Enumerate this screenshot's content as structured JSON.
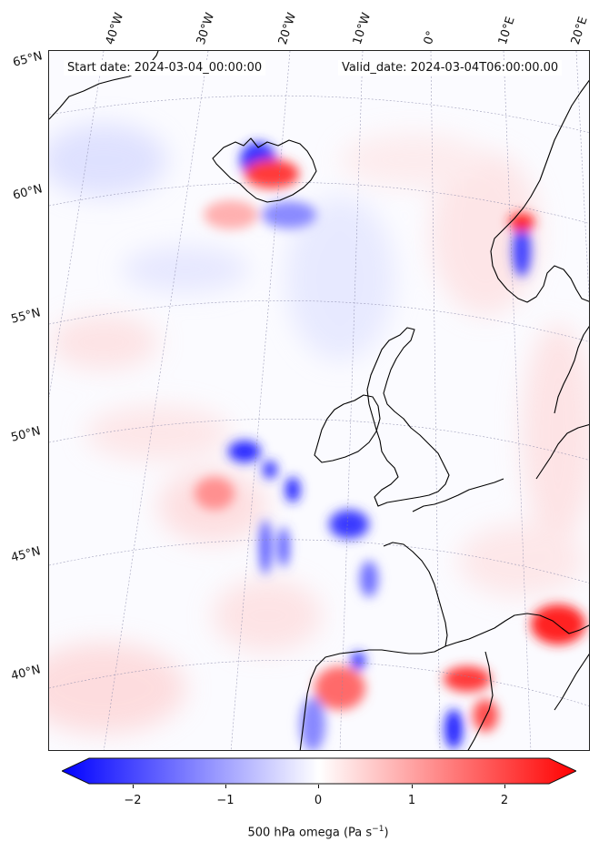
{
  "header": {
    "start_label": "Start date: 2024-03-04_00:00:00",
    "valid_label": "Valid_date: 2024-03-04T06:00:00.00"
  },
  "longitude_labels": [
    "40°W",
    "30°W",
    "20°W",
    "10°W",
    "0°",
    "10°E",
    "20°E"
  ],
  "latitude_labels": [
    "65°N",
    "60°N",
    "55°N",
    "50°N",
    "45°N",
    "40°N"
  ],
  "colorbar": {
    "ticks": [
      "−2",
      "−1",
      "0",
      "1",
      "2"
    ],
    "tick_values": [
      -2,
      -1,
      0,
      1,
      2
    ],
    "range": [
      -2.5,
      2.5
    ],
    "label": "500 hPa omega (Pa s",
    "label_sup": "−1",
    "label_end": ")",
    "cmap": [
      "#0000ff",
      "#ffffff",
      "#ff0000"
    ]
  },
  "colors": {
    "coastline": "#000000",
    "grid": "#8888aa",
    "negative": "#0000ff",
    "positive": "#ff0000"
  }
}
